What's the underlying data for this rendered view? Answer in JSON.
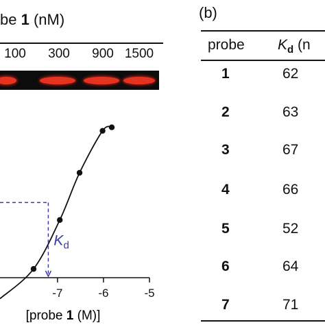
{
  "panel_a": {
    "gel_title_prefix": "be ",
    "gel_title_bold": "1",
    "gel_title_suffix": " (nM)",
    "lanes": [
      "100",
      "300",
      "900",
      "1500"
    ],
    "gel_colors": {
      "background": "#0c0c0c",
      "band": "#e4341f"
    }
  },
  "chart_data": {
    "type": "scatter",
    "title": "",
    "xlabel_prefix": "[probe ",
    "xlabel_bold": "1",
    "xlabel_suffix": " (M)]",
    "ylabel": "",
    "xlim": [
      -8.25,
      -5.0
    ],
    "ylim": [
      0.0,
      1.0
    ],
    "x_ticks": [
      -7,
      -6,
      -5
    ],
    "x_tick_labels": [
      "-7",
      "-6",
      "-5"
    ],
    "series": [
      {
        "x": [
          -7.52,
          -6.95,
          -6.52,
          -6.02,
          -5.82
        ],
        "y": [
          0.05,
          0.33,
          0.6,
          0.84,
          0.86
        ],
        "fit": true,
        "color": "#111111"
      }
    ],
    "kd_marker": {
      "x": -7.2,
      "y": 0.43,
      "label": "K",
      "label_sub": "d",
      "color": "#3a3aa0"
    },
    "grid": false
  },
  "panel_b": {
    "label": "(b)",
    "header_probe": "probe",
    "header_kd_italic": "K",
    "header_kd_sub": "d",
    "header_kd_unit": " (n",
    "rows": [
      {
        "probe": "1",
        "kd": "62"
      },
      {
        "probe": "2",
        "kd": "63"
      },
      {
        "probe": "3",
        "kd": "67"
      },
      {
        "probe": "4",
        "kd": "66"
      },
      {
        "probe": "5",
        "kd": "52"
      },
      {
        "probe": "6",
        "kd": "64"
      },
      {
        "probe": "7",
        "kd": "71"
      }
    ]
  }
}
